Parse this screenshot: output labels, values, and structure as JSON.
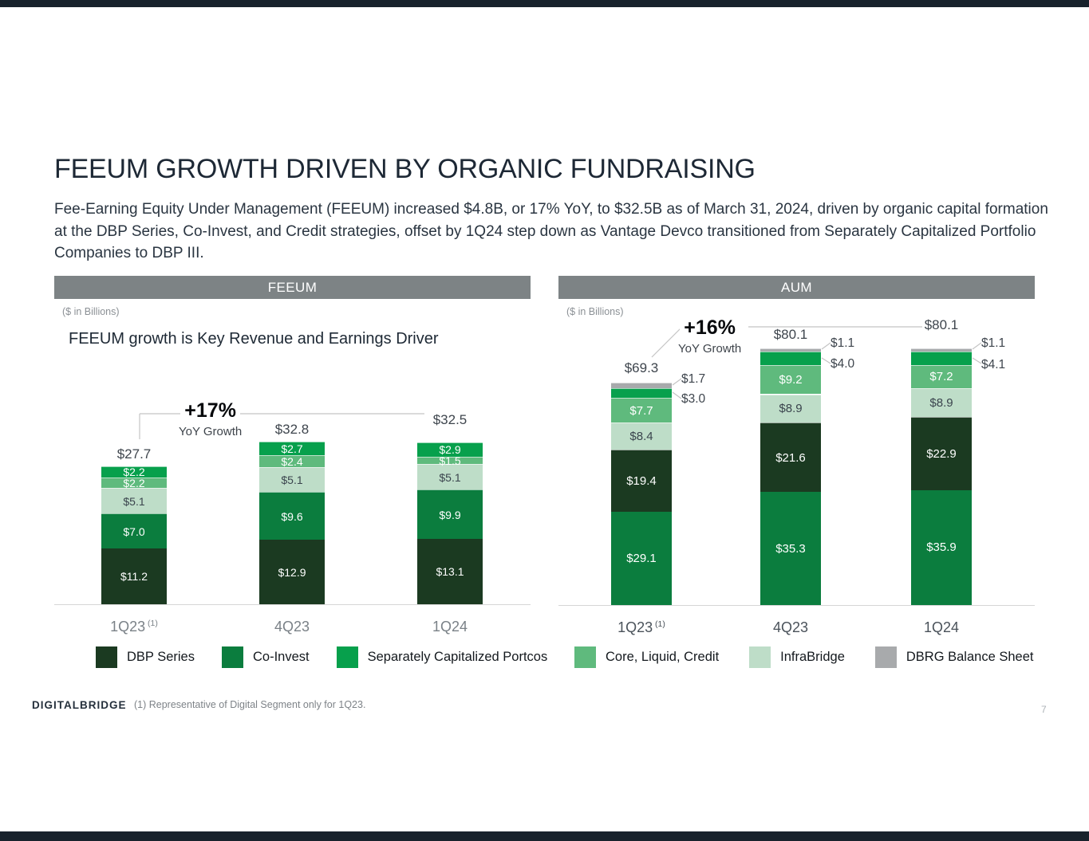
{
  "slide": {
    "title": "FEEUM GROWTH DRIVEN BY ORGANIC FUNDRAISING",
    "subtitle": "Fee-Earning Equity Under Management (FEEUM) increased $4.8B, or 17% YoY, to $32.5B as of March 31, 2024, driven by organic capital formation at the DBP Series, Co-Invest, and Credit strategies, offset by 1Q24 step down as Vantage Devco transitioned from Separately Capitalized Portfolio Companies to DBP III.",
    "footnote": "(1) Representative of Digital Segment only for 1Q23.",
    "page_number": "7",
    "logo_text": "DIGITALBRIDGE"
  },
  "panels": {
    "left": {
      "header": "FEEUM",
      "units": "($ in Billions)"
    },
    "right": {
      "header": "AUM",
      "units": "($ in Billions)"
    }
  },
  "chart_data": [
    {
      "id": "feeum",
      "type": "bar",
      "stacked": true,
      "title": "FEEUM growth is Key Revenue and Earnings Driver",
      "units": "$ in Billions",
      "growth_callout": {
        "pct": "+17%",
        "label": "YoY Growth"
      },
      "categories": [
        {
          "label": "1Q23",
          "sup": "(1)"
        },
        {
          "label": "4Q23",
          "sup": ""
        },
        {
          "label": "1Q24",
          "sup": ""
        }
      ],
      "totals": [
        "$27.7",
        "$32.8",
        "$32.5"
      ],
      "series": [
        {
          "name": "DBP Series",
          "color": "#1B3A21",
          "values": [
            11.2,
            12.9,
            13.1
          ]
        },
        {
          "name": "Co-Invest",
          "color": "#0B7D3E",
          "values": [
            7.0,
            9.6,
            9.9
          ]
        },
        {
          "name": "InfraBridge",
          "color": "#BEDDC8",
          "values": [
            5.1,
            5.1,
            5.1
          ]
        },
        {
          "name": "Core, Liquid, Credit",
          "color": "#5FBA7D",
          "values": [
            2.2,
            2.4,
            1.5
          ]
        },
        {
          "name": "Separately Capitalized Portcos",
          "color": "#07A04C",
          "values": [
            2.2,
            2.7,
            2.9
          ]
        }
      ],
      "ylim": [
        0,
        37
      ],
      "legend_position": "bottom"
    },
    {
      "id": "aum",
      "type": "bar",
      "stacked": true,
      "title": "",
      "units": "$ in Billions",
      "growth_callout": {
        "pct": "+16%",
        "label": "YoY Growth"
      },
      "categories": [
        {
          "label": "1Q23",
          "sup": "(1)"
        },
        {
          "label": "4Q23",
          "sup": ""
        },
        {
          "label": "1Q24",
          "sup": ""
        }
      ],
      "totals": [
        "$69.3",
        "$80.1",
        "$80.1"
      ],
      "series": [
        {
          "name": "Co-Invest",
          "color": "#0B7D3E",
          "values": [
            29.1,
            35.3,
            35.9
          ]
        },
        {
          "name": "DBP Series",
          "color": "#1B3A21",
          "values": [
            19.4,
            21.6,
            22.9
          ]
        },
        {
          "name": "InfraBridge",
          "color": "#BEDDC8",
          "values": [
            8.4,
            8.9,
            8.9
          ]
        },
        {
          "name": "Core, Liquid, Credit",
          "color": "#5FBA7D",
          "values": [
            7.7,
            9.2,
            7.2
          ]
        },
        {
          "name": "Separately Capitalized Portcos",
          "color": "#07A04C",
          "values": [
            3.0,
            4.0,
            4.1
          ],
          "callout": true
        },
        {
          "name": "DBRG Balance Sheet",
          "color": "#A8AAAC",
          "values": [
            1.7,
            1.1,
            1.1
          ],
          "callout": true
        }
      ],
      "ylim": [
        0,
        94
      ],
      "legend_position": "bottom"
    }
  ],
  "legends": {
    "left": [
      {
        "label": "DBP Series",
        "color": "#1B3A21"
      },
      {
        "label": "Co-Invest",
        "color": "#0B7D3E"
      },
      {
        "label": "Separately Capitalized Portcos",
        "color": "#07A04C"
      }
    ],
    "right": [
      {
        "label": "Core, Liquid, Credit",
        "color": "#5FBA7D"
      },
      {
        "label": "InfraBridge",
        "color": "#BEDDC8"
      },
      {
        "label": "DBRG Balance Sheet",
        "color": "#A8AAAC"
      }
    ]
  }
}
